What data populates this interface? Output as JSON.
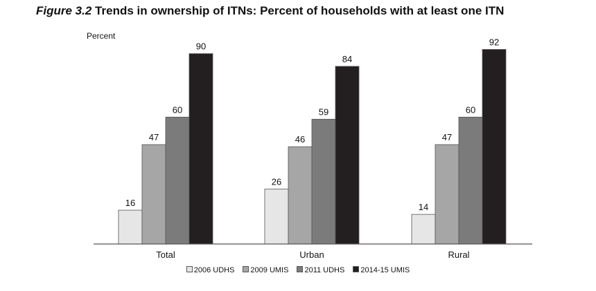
{
  "title": {
    "figure_label": "Figure 3.2",
    "text": "Trends in ownership of ITNs: Percent of households with at least one ITN"
  },
  "chart_data": {
    "type": "bar",
    "ylabel": "Percent",
    "xlabel": "",
    "ylim": [
      0,
      100
    ],
    "grid": false,
    "legend_position": "bottom",
    "categories": [
      "Total",
      "Urban",
      "Rural"
    ],
    "series": [
      {
        "name": "2006 UDHS",
        "values": [
          16,
          26,
          14
        ],
        "color": "#e6e6e6"
      },
      {
        "name": "2009 UMIS",
        "values": [
          47,
          46,
          47
        ],
        "color": "#a6a6a6"
      },
      {
        "name": "2011 UDHS",
        "values": [
          60,
          59,
          60
        ],
        "color": "#7b7b7b"
      },
      {
        "name": "2014-15 UMIS",
        "values": [
          90,
          84,
          92
        ],
        "color": "#231f20"
      }
    ]
  }
}
